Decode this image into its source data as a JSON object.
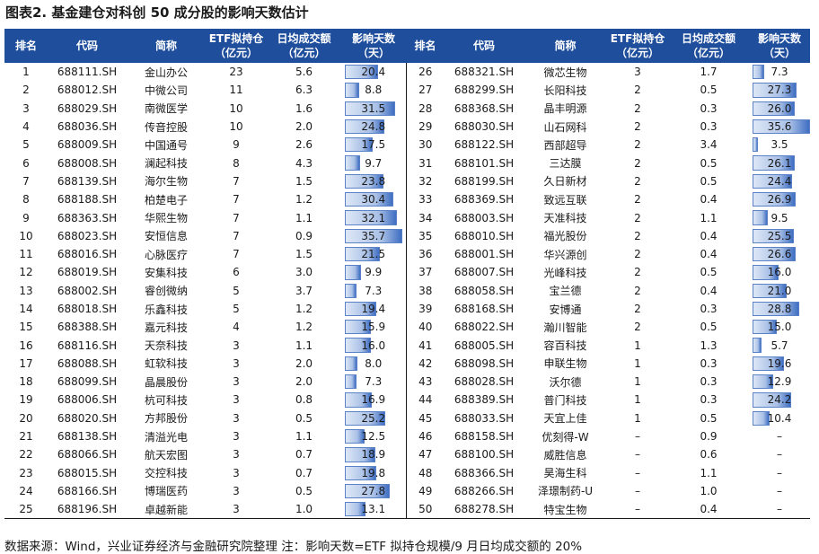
{
  "title": "图表2. 基金建仓对科创 50 成分股的影响天数估计",
  "headers": {
    "rank": "排名",
    "code": "代码",
    "name": "简称",
    "etf_line1": "ETF拟持仓",
    "etf_line2": "（亿元）",
    "turnover_line1": "日均成交额",
    "turnover_line2": "（亿元）",
    "impact_line1": "影响天数",
    "impact_line2": "（天）"
  },
  "impact_max": 35.7,
  "rows": [
    {
      "rank": "1",
      "code": "688111.SH",
      "name": "金山办公",
      "etf": "23",
      "turnover": "5.6",
      "impact": "20.4",
      "impact_value": 20.4
    },
    {
      "rank": "2",
      "code": "688012.SH",
      "name": "中微公司",
      "etf": "11",
      "turnover": "6.3",
      "impact": "8.8",
      "impact_value": 8.8
    },
    {
      "rank": "3",
      "code": "688029.SH",
      "name": "南微医学",
      "etf": "10",
      "turnover": "1.6",
      "impact": "31.5",
      "impact_value": 31.5
    },
    {
      "rank": "4",
      "code": "688036.SH",
      "name": "传音控股",
      "etf": "10",
      "turnover": "2.0",
      "impact": "24.8",
      "impact_value": 24.8
    },
    {
      "rank": "5",
      "code": "688009.SH",
      "name": "中国通号",
      "etf": "9",
      "turnover": "2.6",
      "impact": "17.5",
      "impact_value": 17.5
    },
    {
      "rank": "6",
      "code": "688008.SH",
      "name": "澜起科技",
      "etf": "8",
      "turnover": "4.3",
      "impact": "9.7",
      "impact_value": 9.7
    },
    {
      "rank": "7",
      "code": "688139.SH",
      "name": "海尔生物",
      "etf": "7",
      "turnover": "1.5",
      "impact": "23.8",
      "impact_value": 23.8
    },
    {
      "rank": "8",
      "code": "688188.SH",
      "name": "柏楚电子",
      "etf": "7",
      "turnover": "1.2",
      "impact": "30.4",
      "impact_value": 30.4
    },
    {
      "rank": "9",
      "code": "688363.SH",
      "name": "华熙生物",
      "etf": "7",
      "turnover": "1.1",
      "impact": "32.1",
      "impact_value": 32.1
    },
    {
      "rank": "10",
      "code": "688023.SH",
      "name": "安恒信息",
      "etf": "7",
      "turnover": "0.9",
      "impact": "35.7",
      "impact_value": 35.7
    },
    {
      "rank": "11",
      "code": "688016.SH",
      "name": "心脉医疗",
      "etf": "7",
      "turnover": "1.5",
      "impact": "21.5",
      "impact_value": 21.5
    },
    {
      "rank": "12",
      "code": "688019.SH",
      "name": "安集科技",
      "etf": "6",
      "turnover": "3.0",
      "impact": "9.9",
      "impact_value": 9.9
    },
    {
      "rank": "13",
      "code": "688002.SH",
      "name": "睿创微纳",
      "etf": "5",
      "turnover": "3.7",
      "impact": "7.3",
      "impact_value": 7.3
    },
    {
      "rank": "14",
      "code": "688018.SH",
      "name": "乐鑫科技",
      "etf": "5",
      "turnover": "1.2",
      "impact": "19.4",
      "impact_value": 19.4
    },
    {
      "rank": "15",
      "code": "688388.SH",
      "name": "嘉元科技",
      "etf": "4",
      "turnover": "1.2",
      "impact": "15.9",
      "impact_value": 15.9
    },
    {
      "rank": "16",
      "code": "688116.SH",
      "name": "天奈科技",
      "etf": "3",
      "turnover": "1.1",
      "impact": "16.0",
      "impact_value": 16.0
    },
    {
      "rank": "17",
      "code": "688088.SH",
      "name": "虹软科技",
      "etf": "3",
      "turnover": "2.0",
      "impact": "8.0",
      "impact_value": 8.0
    },
    {
      "rank": "18",
      "code": "688099.SH",
      "name": "晶晨股份",
      "etf": "3",
      "turnover": "2.0",
      "impact": "7.3",
      "impact_value": 7.3
    },
    {
      "rank": "19",
      "code": "688006.SH",
      "name": "杭可科技",
      "etf": "3",
      "turnover": "0.8",
      "impact": "16.9",
      "impact_value": 16.9
    },
    {
      "rank": "20",
      "code": "688020.SH",
      "name": "方邦股份",
      "etf": "3",
      "turnover": "0.5",
      "impact": "25.2",
      "impact_value": 25.2
    },
    {
      "rank": "21",
      "code": "688138.SH",
      "name": "清溢光电",
      "etf": "3",
      "turnover": "1.1",
      "impact": "12.5",
      "impact_value": 12.5
    },
    {
      "rank": "22",
      "code": "688066.SH",
      "name": "航天宏图",
      "etf": "3",
      "turnover": "0.7",
      "impact": "18.9",
      "impact_value": 18.9
    },
    {
      "rank": "23",
      "code": "688015.SH",
      "name": "交控科技",
      "etf": "3",
      "turnover": "0.7",
      "impact": "19.8",
      "impact_value": 19.8
    },
    {
      "rank": "24",
      "code": "688166.SH",
      "name": "博瑞医药",
      "etf": "3",
      "turnover": "0.5",
      "impact": "27.8",
      "impact_value": 27.8
    },
    {
      "rank": "25",
      "code": "688196.SH",
      "name": "卓越新能",
      "etf": "3",
      "turnover": "1.0",
      "impact": "13.1",
      "impact_value": 13.1
    },
    {
      "rank": "26",
      "code": "688321.SH",
      "name": "微芯生物",
      "etf": "3",
      "turnover": "1.7",
      "impact": "7.3",
      "impact_value": 7.3
    },
    {
      "rank": "27",
      "code": "688299.SH",
      "name": "长阳科技",
      "etf": "2",
      "turnover": "0.5",
      "impact": "27.3",
      "impact_value": 27.3
    },
    {
      "rank": "28",
      "code": "688368.SH",
      "name": "晶丰明源",
      "etf": "2",
      "turnover": "0.3",
      "impact": "26.0",
      "impact_value": 26.0
    },
    {
      "rank": "29",
      "code": "688030.SH",
      "name": "山石网科",
      "etf": "2",
      "turnover": "0.3",
      "impact": "35.6",
      "impact_value": 35.6
    },
    {
      "rank": "30",
      "code": "688122.SH",
      "name": "西部超导",
      "etf": "2",
      "turnover": "3.4",
      "impact": "3.5",
      "impact_value": 3.5
    },
    {
      "rank": "31",
      "code": "688101.SH",
      "name": "三达膜",
      "etf": "2",
      "turnover": "0.5",
      "impact": "26.1",
      "impact_value": 26.1
    },
    {
      "rank": "32",
      "code": "688199.SH",
      "name": "久日新材",
      "etf": "2",
      "turnover": "0.5",
      "impact": "24.4",
      "impact_value": 24.4
    },
    {
      "rank": "33",
      "code": "688369.SH",
      "name": "致远互联",
      "etf": "2",
      "turnover": "0.4",
      "impact": "26.9",
      "impact_value": 26.9
    },
    {
      "rank": "34",
      "code": "688003.SH",
      "name": "天准科技",
      "etf": "2",
      "turnover": "1.1",
      "impact": "9.5",
      "impact_value": 9.5
    },
    {
      "rank": "35",
      "code": "688010.SH",
      "name": "福光股份",
      "etf": "2",
      "turnover": "0.4",
      "impact": "25.5",
      "impact_value": 25.5
    },
    {
      "rank": "36",
      "code": "688001.SH",
      "name": "华兴源创",
      "etf": "2",
      "turnover": "0.4",
      "impact": "26.6",
      "impact_value": 26.6
    },
    {
      "rank": "37",
      "code": "688007.SH",
      "name": "光峰科技",
      "etf": "2",
      "turnover": "0.5",
      "impact": "16.0",
      "impact_value": 16.0
    },
    {
      "rank": "38",
      "code": "688058.SH",
      "name": "宝兰德",
      "etf": "2",
      "turnover": "0.4",
      "impact": "21.0",
      "impact_value": 21.0
    },
    {
      "rank": "39",
      "code": "688168.SH",
      "name": "安博通",
      "etf": "2",
      "turnover": "0.3",
      "impact": "28.8",
      "impact_value": 28.8
    },
    {
      "rank": "40",
      "code": "688022.SH",
      "name": "瀚川智能",
      "etf": "2",
      "turnover": "0.5",
      "impact": "15.0",
      "impact_value": 15.0
    },
    {
      "rank": "41",
      "code": "688005.SH",
      "name": "容百科技",
      "etf": "1",
      "turnover": "1.3",
      "impact": "5.7",
      "impact_value": 5.7
    },
    {
      "rank": "42",
      "code": "688098.SH",
      "name": "申联生物",
      "etf": "1",
      "turnover": "0.3",
      "impact": "19.6",
      "impact_value": 19.6
    },
    {
      "rank": "43",
      "code": "688028.SH",
      "name": "沃尔德",
      "etf": "1",
      "turnover": "0.3",
      "impact": "12.9",
      "impact_value": 12.9
    },
    {
      "rank": "44",
      "code": "688389.SH",
      "name": "普门科技",
      "etf": "1",
      "turnover": "0.3",
      "impact": "24.2",
      "impact_value": 24.2
    },
    {
      "rank": "45",
      "code": "688033.SH",
      "name": "天宜上佳",
      "etf": "1",
      "turnover": "0.5",
      "impact": "10.4",
      "impact_value": 10.4
    },
    {
      "rank": "46",
      "code": "688158.SH",
      "name": "优刻得-W",
      "etf": "–",
      "turnover": "0.9",
      "impact": "–",
      "impact_value": 0
    },
    {
      "rank": "47",
      "code": "688100.SH",
      "name": "威胜信息",
      "etf": "–",
      "turnover": "0.6",
      "impact": "–",
      "impact_value": 0
    },
    {
      "rank": "48",
      "code": "688366.SH",
      "name": "昊海生科",
      "etf": "–",
      "turnover": "1.1",
      "impact": "–",
      "impact_value": 0
    },
    {
      "rank": "49",
      "code": "688266.SH",
      "name": "泽璟制药-U",
      "etf": "–",
      "turnover": "1.0",
      "impact": "–",
      "impact_value": 0
    },
    {
      "rank": "50",
      "code": "688278.SH",
      "name": "特宝生物",
      "etf": "–",
      "turnover": "0.4",
      "impact": "–",
      "impact_value": 0
    }
  ],
  "note": "数据来源：Wind，兴业证券经济与金融研究院整理   注：影响天数=ETF 拟持仓规模/9 月日均成交额的 20%"
}
